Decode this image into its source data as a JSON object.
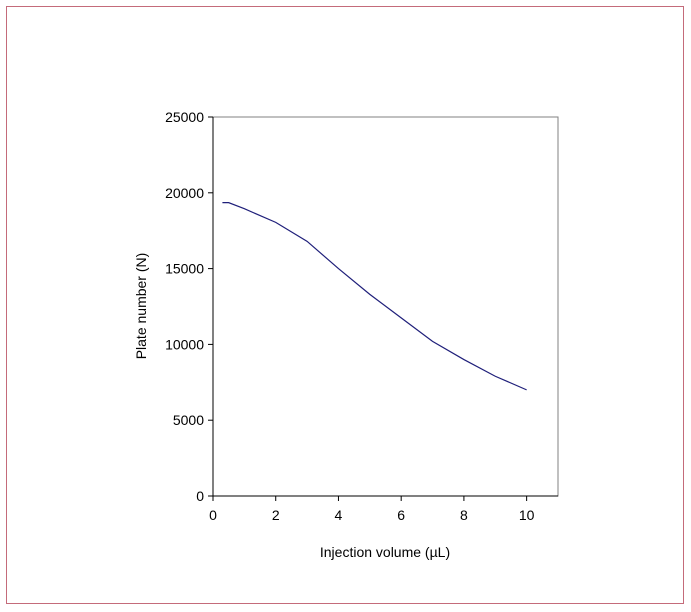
{
  "chart_data": {
    "type": "line",
    "title": "",
    "xlabel": "Injection volume (µL)",
    "ylabel": "Plate number (N)",
    "xlim": [
      0,
      11
    ],
    "ylim": [
      0,
      25000
    ],
    "x_ticks": [
      0,
      2,
      4,
      6,
      8,
      10
    ],
    "y_ticks": [
      0,
      5000,
      10000,
      15000,
      20000,
      25000
    ],
    "grid": false,
    "legend": "none",
    "series": [
      {
        "color": "#1f1f7a",
        "x": [
          0.3,
          0.5,
          1,
          2,
          3,
          4,
          5,
          6,
          7,
          8,
          9,
          10
        ],
        "y": [
          19350,
          19350,
          18950,
          18050,
          16800,
          15000,
          13300,
          11750,
          10200,
          9000,
          7900,
          7000
        ]
      }
    ]
  },
  "colors": {
    "frame_border": "#c46b7a",
    "axis": "#000000",
    "line": "#1f1f7a"
  }
}
